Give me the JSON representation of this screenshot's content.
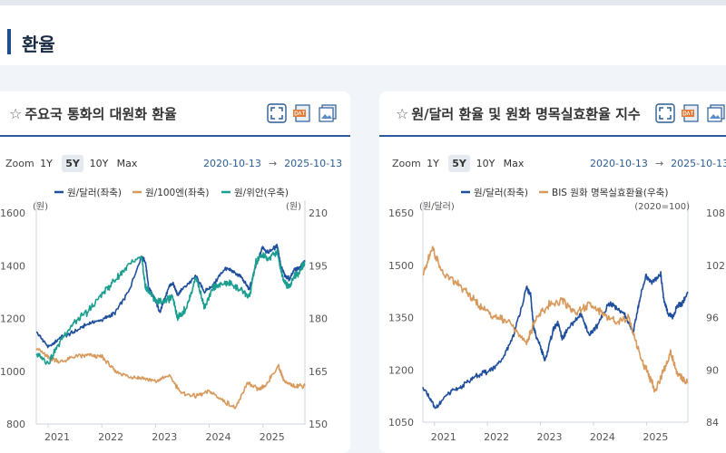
{
  "page": {
    "title": "환율"
  },
  "panels": [
    {
      "title": "주요국 통화의 대원화 환율",
      "star": "☆",
      "zoom": {
        "label": "Zoom",
        "options": [
          "1Y",
          "5Y",
          "10Y",
          "Max"
        ],
        "active": "5Y"
      },
      "date_from": "2020-10-13",
      "arrow": "→",
      "date_to": "2025-10-13"
    },
    {
      "title": "원/달러 환율 및 원화 명목실효환율 지수",
      "star": "☆",
      "zoom": {
        "label": "Zoom",
        "options": [
          "1Y",
          "5Y",
          "10Y",
          "Max"
        ],
        "active": "5Y"
      },
      "date_from": "2020-10-13",
      "arrow": "→",
      "date_to": "2025-10-13"
    }
  ],
  "chart_data": [
    {
      "type": "line",
      "x_ticks": [
        "2021",
        "2022",
        "2023",
        "2024",
        "2025"
      ],
      "xlim": [
        "2020-10-13",
        "2025-10-13"
      ],
      "y_left": {
        "unit_label": "(원)",
        "ticks": [
          800,
          1000,
          1200,
          1400,
          1600
        ],
        "ylim": [
          800,
          1600
        ]
      },
      "y_right": {
        "unit_label": "(원)",
        "ticks": [
          150,
          165,
          180,
          195,
          210
        ],
        "ylim": [
          150,
          210
        ]
      },
      "legend_position": "top",
      "series": [
        {
          "name": "원/달러(좌축)",
          "axis": "left",
          "color": "#1f4e9c",
          "x": [
            "2020-10-13",
            "2021-01-04",
            "2021-04-01",
            "2021-07-01",
            "2021-10-01",
            "2022-01-03",
            "2022-04-01",
            "2022-07-01",
            "2022-09-28",
            "2022-10-25",
            "2022-11-15",
            "2023-01-02",
            "2023-02-02",
            "2023-04-03",
            "2023-05-01",
            "2023-06-01",
            "2023-07-01",
            "2023-10-04",
            "2023-12-01",
            "2024-02-01",
            "2024-04-16",
            "2024-06-01",
            "2024-08-01",
            "2024-09-30",
            "2024-11-14",
            "2024-12-30",
            "2025-02-03",
            "2025-04-09",
            "2025-05-01",
            "2025-06-01",
            "2025-07-01",
            "2025-08-01",
            "2025-09-01",
            "2025-10-13"
          ],
          "values": [
            1150,
            1090,
            1130,
            1150,
            1180,
            1195,
            1220,
            1300,
            1435,
            1415,
            1320,
            1265,
            1225,
            1320,
            1335,
            1290,
            1310,
            1360,
            1300,
            1330,
            1390,
            1380,
            1360,
            1310,
            1400,
            1470,
            1450,
            1475,
            1400,
            1360,
            1350,
            1385,
            1390,
            1420
          ]
        },
        {
          "name": "원/100엔(좌축)",
          "axis": "left",
          "color": "#d89a5c",
          "x": [
            "2020-10-13",
            "2021-01-04",
            "2021-04-01",
            "2021-07-01",
            "2021-10-01",
            "2022-01-03",
            "2022-04-01",
            "2022-07-01",
            "2022-10-01",
            "2023-01-02",
            "2023-04-01",
            "2023-07-01",
            "2023-10-01",
            "2024-01-02",
            "2024-04-01",
            "2024-07-01",
            "2024-09-15",
            "2024-12-01",
            "2025-01-15",
            "2025-04-15",
            "2025-06-01",
            "2025-08-01",
            "2025-10-13"
          ],
          "values": [
            1090,
            1050,
            1035,
            1055,
            1060,
            1055,
            1000,
            980,
            975,
            960,
            985,
            915,
            905,
            925,
            890,
            860,
            955,
            930,
            945,
            1020,
            955,
            945,
            945
          ]
        },
        {
          "name": "원/위안(우축)",
          "axis": "right",
          "color": "#1a9e8f",
          "x": [
            "2020-10-13",
            "2021-01-04",
            "2021-04-01",
            "2021-07-01",
            "2021-10-01",
            "2022-01-03",
            "2022-04-01",
            "2022-07-01",
            "2022-09-28",
            "2022-10-25",
            "2022-11-15",
            "2023-01-02",
            "2023-03-01",
            "2023-05-01",
            "2023-06-01",
            "2023-08-01",
            "2023-10-04",
            "2023-12-01",
            "2024-02-01",
            "2024-04-16",
            "2024-06-01",
            "2024-08-01",
            "2024-09-30",
            "2024-11-14",
            "2024-12-30",
            "2025-02-03",
            "2025-04-09",
            "2025-05-01",
            "2025-06-01",
            "2025-07-01",
            "2025-08-01",
            "2025-09-01",
            "2025-10-13"
          ],
          "values": [
            170,
            167.5,
            174,
            179,
            182,
            187,
            191,
            195,
            197.5,
            189,
            188,
            185,
            185,
            186,
            180,
            183,
            192,
            183,
            189,
            190,
            190,
            188,
            186,
            196,
            198,
            197,
            199,
            194,
            190,
            189,
            192,
            193,
            196
          ]
        }
      ]
    },
    {
      "type": "line",
      "x_ticks": [
        "2021",
        "2022",
        "2023",
        "2024",
        "2025"
      ],
      "xlim": [
        "2020-10-13",
        "2025-10-13"
      ],
      "y_left": {
        "unit_label": "(원/달러)",
        "ticks": [
          1050,
          1200,
          1350,
          1500,
          1650
        ],
        "ylim": [
          1050,
          1650
        ]
      },
      "y_right": {
        "unit_label": "(2020=100)",
        "ticks": [
          84,
          90,
          96,
          102,
          108
        ],
        "ylim": [
          84,
          108
        ]
      },
      "legend_position": "top",
      "series": [
        {
          "name": "원/달러(좌축)",
          "axis": "left",
          "color": "#1f4e9c",
          "x": [
            "2020-10-13",
            "2021-01-04",
            "2021-04-01",
            "2021-07-01",
            "2021-10-01",
            "2022-01-03",
            "2022-04-01",
            "2022-07-01",
            "2022-09-28",
            "2022-10-25",
            "2022-11-15",
            "2023-01-02",
            "2023-02-02",
            "2023-04-03",
            "2023-05-01",
            "2023-06-01",
            "2023-07-01",
            "2023-10-04",
            "2023-12-01",
            "2024-02-01",
            "2024-04-16",
            "2024-06-01",
            "2024-08-01",
            "2024-09-30",
            "2024-11-14",
            "2024-12-30",
            "2025-02-03",
            "2025-04-09",
            "2025-05-01",
            "2025-06-01",
            "2025-07-01",
            "2025-08-01",
            "2025-09-01",
            "2025-10-13"
          ],
          "values": [
            1150,
            1090,
            1130,
            1150,
            1180,
            1195,
            1220,
            1300,
            1435,
            1415,
            1320,
            1265,
            1225,
            1320,
            1335,
            1290,
            1310,
            1360,
            1300,
            1330,
            1390,
            1380,
            1360,
            1310,
            1400,
            1470,
            1450,
            1475,
            1400,
            1360,
            1350,
            1385,
            1390,
            1420
          ]
        },
        {
          "name": "BIS 원화 명목실효환율(우축)",
          "axis": "right",
          "color": "#d89a5c",
          "x": [
            "2020-10-13",
            "2020-12-15",
            "2021-03-01",
            "2021-06-01",
            "2021-09-01",
            "2021-12-01",
            "2022-03-01",
            "2022-06-01",
            "2022-09-28",
            "2022-12-01",
            "2023-03-01",
            "2023-06-01",
            "2023-09-01",
            "2023-12-01",
            "2024-03-01",
            "2024-06-01",
            "2024-09-01",
            "2024-12-01",
            "2025-01-15",
            "2025-03-01",
            "2025-05-01",
            "2025-06-15",
            "2025-08-01",
            "2025-10-13"
          ],
          "values": [
            101,
            104,
            101,
            100,
            98.5,
            97,
            96,
            95.5,
            93,
            96,
            97.5,
            98,
            96.5,
            97.5,
            96.5,
            95.5,
            96,
            91,
            89.5,
            87.5,
            90,
            92,
            89.5,
            88.5
          ]
        }
      ]
    }
  ]
}
